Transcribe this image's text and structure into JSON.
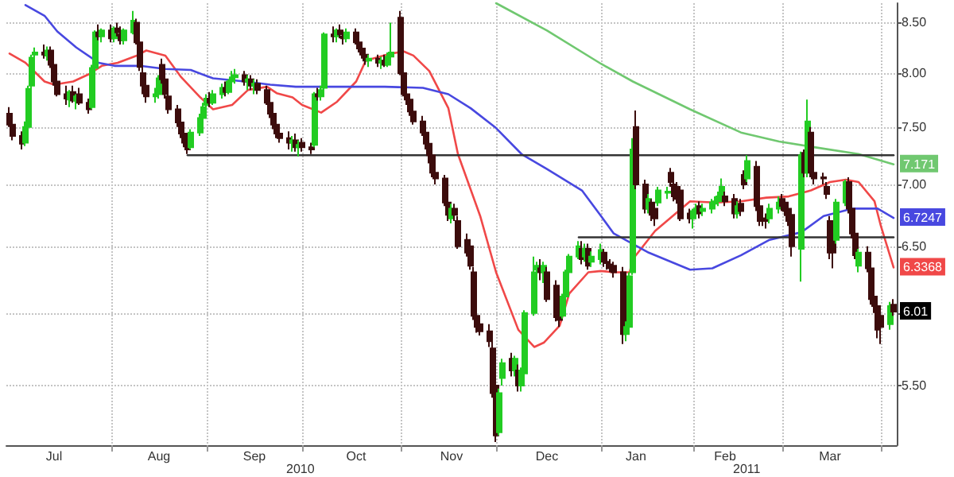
{
  "chart_data": {
    "type": "candlestick",
    "x": [
      "2010-07-01",
      "2010-07-02",
      "2010-07-05",
      "2010-07-06",
      "2010-07-07",
      "2010-07-08",
      "2010-07-09",
      "2010-07-12",
      "2010-07-13",
      "2010-07-14",
      "2010-07-15",
      "2010-07-16",
      "2010-07-19",
      "2010-07-20",
      "2010-07-21",
      "2010-07-22",
      "2010-07-23",
      "2010-07-26",
      "2010-07-27",
      "2010-07-28",
      "2010-07-29",
      "2010-07-30",
      "2010-08-02",
      "2010-08-03",
      "2010-08-04",
      "2010-08-05",
      "2010-08-06",
      "2010-08-09",
      "2010-08-10",
      "2010-08-11",
      "2010-08-12",
      "2010-08-13",
      "2010-08-16",
      "2010-08-17",
      "2010-08-18",
      "2010-08-19",
      "2010-08-20",
      "2010-08-23",
      "2010-08-24",
      "2010-08-25",
      "2010-08-26",
      "2010-08-27",
      "2010-08-30",
      "2010-08-31",
      "2010-09-01",
      "2010-09-02",
      "2010-09-03",
      "2010-09-06",
      "2010-09-07",
      "2010-09-08",
      "2010-09-09",
      "2010-09-10",
      "2010-09-13",
      "2010-09-14",
      "2010-09-15",
      "2010-09-16",
      "2010-09-17",
      "2010-09-20",
      "2010-09-21",
      "2010-09-22",
      "2010-09-23",
      "2010-09-24",
      "2010-09-27",
      "2010-09-28",
      "2010-09-29",
      "2010-09-30",
      "2010-10-01",
      "2010-10-04",
      "2010-10-05",
      "2010-10-06",
      "2010-10-07",
      "2010-10-08",
      "2010-10-11",
      "2010-10-12",
      "2010-10-13",
      "2010-10-14",
      "2010-10-15",
      "2010-10-18",
      "2010-10-19",
      "2010-10-20",
      "2010-10-21",
      "2010-10-22",
      "2010-10-25",
      "2010-10-26",
      "2010-10-27",
      "2010-10-28",
      "2010-10-29",
      "2010-11-01",
      "2010-11-02",
      "2010-11-03",
      "2010-11-04",
      "2010-11-05",
      "2010-11-08",
      "2010-11-09",
      "2010-11-10",
      "2010-11-11",
      "2010-11-12",
      "2010-11-15",
      "2010-11-16",
      "2010-11-17",
      "2010-11-18",
      "2010-11-19",
      "2010-11-22",
      "2010-11-23",
      "2010-11-24",
      "2010-11-25",
      "2010-11-26",
      "2010-11-29",
      "2010-11-30",
      "2010-12-01",
      "2010-12-02",
      "2010-12-03",
      "2010-12-06",
      "2010-12-07",
      "2010-12-08",
      "2010-12-09",
      "2010-12-10",
      "2010-12-13",
      "2010-12-14",
      "2010-12-15",
      "2010-12-16",
      "2010-12-17",
      "2010-12-20",
      "2010-12-21",
      "2010-12-22",
      "2010-12-23",
      "2010-12-24",
      "2010-12-27",
      "2010-12-28",
      "2010-12-29",
      "2010-12-30",
      "2010-12-31",
      "2011-01-03",
      "2011-01-04",
      "2011-01-05",
      "2011-01-06",
      "2011-01-07",
      "2011-01-10",
      "2011-01-11",
      "2011-01-12",
      "2011-01-13",
      "2011-01-14",
      "2011-01-17",
      "2011-01-18",
      "2011-01-19",
      "2011-01-20",
      "2011-01-21",
      "2011-01-24",
      "2011-01-25",
      "2011-01-26",
      "2011-01-27",
      "2011-01-28",
      "2011-01-31",
      "2011-02-01",
      "2011-02-02",
      "2011-02-03",
      "2011-02-04",
      "2011-02-07",
      "2011-02-08",
      "2011-02-09",
      "2011-02-10",
      "2011-02-11",
      "2011-02-14",
      "2011-02-15",
      "2011-02-16",
      "2011-02-17",
      "2011-02-18",
      "2011-02-21",
      "2011-02-22",
      "2011-02-23",
      "2011-02-24",
      "2011-02-25",
      "2011-02-28",
      "2011-03-01",
      "2011-03-02",
      "2011-03-03",
      "2011-03-04",
      "2011-03-07",
      "2011-03-08",
      "2011-03-09",
      "2011-03-10",
      "2011-03-11",
      "2011-03-14",
      "2011-03-15",
      "2011-03-16",
      "2011-03-17",
      "2011-03-18",
      "2011-03-21",
      "2011-03-22",
      "2011-03-23",
      "2011-03-24",
      "2011-03-25",
      "2011-03-28",
      "2011-03-29",
      "2011-03-30",
      "2011-03-31",
      "2011-04-01",
      "2011-04-04",
      "2011-04-05"
    ],
    "ohlc": [
      [
        7.62,
        7.68,
        7.5,
        7.52
      ],
      [
        7.52,
        7.58,
        7.38,
        7.42
      ],
      [
        7.42,
        7.46,
        7.3,
        7.35
      ],
      [
        7.36,
        7.55,
        7.33,
        7.5
      ],
      [
        7.5,
        7.88,
        7.48,
        7.85
      ],
      [
        7.88,
        8.18,
        7.85,
        8.15
      ],
      [
        8.18,
        8.25,
        8.12,
        8.2
      ],
      [
        8.2,
        8.28,
        8.14,
        8.18
      ],
      [
        8.17,
        8.26,
        8.12,
        8.22
      ],
      [
        8.22,
        8.26,
        8.05,
        8.08
      ],
      [
        8.08,
        8.12,
        7.88,
        7.92
      ],
      [
        7.92,
        7.96,
        7.78,
        7.8
      ],
      [
        7.8,
        7.88,
        7.7,
        7.76
      ],
      [
        7.75,
        7.84,
        7.68,
        7.82
      ],
      [
        7.82,
        7.88,
        7.72,
        7.74
      ],
      [
        7.74,
        7.8,
        7.66,
        7.78
      ],
      [
        7.8,
        7.86,
        7.7,
        7.72
      ],
      [
        7.72,
        7.76,
        7.62,
        7.66
      ],
      [
        7.68,
        8.08,
        7.66,
        8.05
      ],
      [
        8.05,
        8.42,
        8.02,
        8.4
      ],
      [
        8.4,
        8.48,
        8.32,
        8.36
      ],
      [
        8.36,
        8.44,
        8.3,
        8.42
      ],
      [
        8.42,
        8.48,
        8.3,
        8.34
      ],
      [
        8.34,
        8.46,
        8.3,
        8.44
      ],
      [
        8.44,
        8.5,
        8.36,
        8.4
      ],
      [
        8.38,
        8.46,
        8.28,
        8.32
      ],
      [
        8.32,
        8.44,
        8.28,
        8.42
      ],
      [
        8.4,
        8.62,
        8.38,
        8.52
      ],
      [
        8.5,
        8.54,
        8.28,
        8.3
      ],
      [
        8.3,
        8.34,
        8.02,
        8.06
      ],
      [
        8.0,
        8.06,
        7.8,
        7.88
      ],
      [
        7.88,
        7.96,
        7.72,
        7.78
      ],
      [
        7.78,
        7.86,
        7.72,
        7.8
      ],
      [
        7.8,
        7.98,
        7.76,
        7.95
      ],
      [
        8.08,
        8.14,
        7.9,
        7.94
      ],
      [
        7.94,
        7.98,
        7.76,
        7.8
      ],
      [
        7.78,
        7.82,
        7.62,
        7.66
      ],
      [
        7.66,
        7.7,
        7.5,
        7.54
      ],
      [
        7.54,
        7.58,
        7.4,
        7.44
      ],
      [
        7.44,
        7.48,
        7.32,
        7.36
      ],
      [
        7.36,
        7.42,
        7.26,
        7.3
      ],
      [
        7.32,
        7.48,
        7.3,
        7.45
      ],
      [
        7.45,
        7.62,
        7.42,
        7.58
      ],
      [
        7.58,
        7.72,
        7.55,
        7.68
      ],
      [
        7.7,
        7.8,
        7.64,
        7.76
      ],
      [
        7.76,
        7.82,
        7.68,
        7.72
      ],
      [
        7.72,
        7.84,
        7.7,
        7.8
      ],
      [
        7.8,
        7.9,
        7.76,
        7.86
      ],
      [
        7.86,
        7.92,
        7.78,
        7.82
      ],
      [
        7.82,
        7.94,
        7.8,
        7.92
      ],
      [
        7.92,
        8.02,
        7.86,
        7.96
      ],
      [
        7.96,
        8.04,
        7.9,
        7.98
      ],
      [
        7.98,
        8.02,
        7.88,
        7.92
      ],
      [
        7.92,
        7.98,
        7.84,
        7.94
      ],
      [
        7.94,
        7.98,
        7.84,
        7.88
      ],
      [
        7.88,
        7.94,
        7.8,
        7.9
      ],
      [
        7.9,
        7.94,
        7.8,
        7.84
      ],
      [
        7.84,
        7.88,
        7.7,
        7.72
      ],
      [
        7.72,
        7.76,
        7.58,
        7.62
      ],
      [
        7.62,
        7.66,
        7.48,
        7.52
      ],
      [
        7.52,
        7.56,
        7.4,
        7.44
      ],
      [
        7.44,
        7.5,
        7.36,
        7.4
      ],
      [
        7.4,
        7.46,
        7.3,
        7.36
      ],
      [
        7.36,
        7.42,
        7.28,
        7.38
      ],
      [
        7.38,
        7.44,
        7.28,
        7.32
      ],
      [
        7.32,
        7.38,
        7.24,
        7.34
      ],
      [
        7.36,
        7.4,
        7.28,
        7.32
      ],
      [
        7.32,
        7.36,
        7.26,
        7.3
      ],
      [
        7.34,
        7.82,
        7.32,
        7.8
      ],
      [
        7.8,
        7.86,
        7.74,
        7.78
      ],
      [
        7.78,
        7.88,
        7.74,
        7.84
      ],
      [
        7.86,
        8.4,
        7.84,
        8.38
      ],
      [
        8.38,
        8.46,
        8.3,
        8.36
      ],
      [
        8.36,
        8.44,
        8.3,
        8.42
      ],
      [
        8.42,
        8.48,
        8.34,
        8.38
      ],
      [
        8.36,
        8.42,
        8.28,
        8.34
      ],
      [
        8.34,
        8.44,
        8.3,
        8.4
      ],
      [
        8.4,
        8.44,
        8.28,
        8.3
      ],
      [
        8.3,
        8.34,
        8.2,
        8.24
      ],
      [
        8.24,
        8.28,
        8.14,
        8.18
      ],
      [
        8.18,
        8.22,
        8.08,
        8.12
      ],
      [
        8.12,
        8.18,
        8.06,
        8.14
      ],
      [
        8.14,
        8.18,
        8.06,
        8.1
      ],
      [
        8.1,
        8.16,
        8.04,
        8.12
      ],
      [
        8.12,
        8.18,
        8.06,
        8.08
      ],
      [
        8.08,
        8.2,
        8.06,
        8.16
      ],
      [
        8.16,
        8.5,
        8.12,
        8.2
      ],
      [
        8.55,
        8.62,
        7.98,
        8.0
      ],
      [
        8.0,
        8.04,
        7.78,
        7.8
      ],
      [
        7.8,
        7.86,
        7.7,
        7.75
      ],
      [
        7.75,
        7.8,
        7.6,
        7.64
      ],
      [
        7.64,
        7.68,
        7.52,
        7.55
      ],
      [
        7.55,
        7.6,
        7.42,
        7.45
      ],
      [
        7.45,
        7.5,
        7.3,
        7.35
      ],
      [
        7.35,
        7.4,
        7.18,
        7.25
      ],
      [
        7.25,
        7.3,
        7.06,
        7.1
      ],
      [
        7.1,
        7.16,
        7.0,
        7.05
      ],
      [
        7.05,
        7.08,
        6.82,
        6.85
      ],
      [
        6.85,
        6.9,
        6.7,
        6.75
      ],
      [
        6.72,
        6.84,
        6.68,
        6.8
      ],
      [
        6.8,
        6.84,
        6.7,
        6.75
      ],
      [
        6.7,
        6.74,
        6.48,
        6.5
      ],
      [
        6.55,
        6.6,
        6.42,
        6.45
      ],
      [
        6.5,
        6.54,
        6.32,
        6.35
      ],
      [
        6.3,
        6.34,
        5.95,
        5.98
      ],
      [
        5.98,
        6.04,
        5.86,
        5.9
      ],
      [
        5.92,
        5.98,
        5.84,
        5.87
      ],
      [
        5.87,
        5.92,
        5.76,
        5.8
      ],
      [
        5.75,
        5.8,
        5.42,
        5.45
      ],
      [
        5.5,
        5.56,
        5.14,
        5.18
      ],
      [
        5.2,
        5.48,
        5.18,
        5.45
      ],
      [
        5.55,
        5.68,
        5.5,
        5.65
      ],
      [
        5.68,
        5.72,
        5.56,
        5.6
      ],
      [
        5.6,
        5.7,
        5.56,
        5.68
      ],
      [
        5.6,
        5.64,
        5.46,
        5.5
      ],
      [
        5.5,
        5.62,
        5.46,
        5.6
      ],
      [
        5.58,
        6.02,
        5.56,
        6.0
      ],
      [
        6.0,
        6.42,
        5.98,
        6.3
      ],
      [
        6.32,
        6.38,
        6.22,
        6.35
      ],
      [
        6.33,
        6.4,
        6.24,
        6.3
      ],
      [
        6.3,
        6.38,
        6.22,
        6.35
      ],
      [
        6.3,
        6.34,
        6.08,
        6.1
      ],
      [
        6.2,
        6.24,
        5.94,
        5.97
      ],
      [
        5.99,
        6.04,
        5.9,
        5.95
      ],
      [
        5.98,
        6.14,
        5.96,
        6.12
      ],
      [
        6.12,
        6.32,
        6.1,
        6.3
      ],
      [
        6.3,
        6.44,
        6.28,
        6.42
      ],
      [
        6.42,
        6.54,
        6.4,
        6.5
      ],
      [
        6.48,
        6.54,
        6.36,
        6.4
      ],
      [
        6.42,
        6.52,
        6.38,
        6.48
      ],
      [
        6.48,
        6.52,
        6.32,
        6.35
      ],
      [
        6.38,
        6.46,
        6.34,
        6.42
      ],
      [
        6.4,
        6.52,
        6.36,
        6.47
      ],
      [
        6.45,
        6.48,
        6.34,
        6.38
      ],
      [
        6.38,
        6.42,
        6.32,
        6.37
      ],
      [
        6.36,
        6.4,
        6.3,
        6.33
      ],
      [
        6.35,
        6.38,
        6.26,
        6.3
      ],
      [
        6.3,
        6.34,
        5.78,
        5.85
      ],
      [
        5.85,
        5.94,
        5.8,
        5.9
      ],
      [
        5.9,
        6.3,
        5.88,
        6.27
      ],
      [
        6.3,
        7.4,
        6.28,
        7.3
      ],
      [
        7.5,
        7.65,
        6.96,
        7.0
      ],
      [
        7.0,
        7.04,
        6.76,
        6.8
      ],
      [
        6.8,
        6.92,
        6.76,
        6.88
      ],
      [
        6.85,
        6.88,
        6.7,
        6.75
      ],
      [
        6.8,
        6.84,
        6.66,
        6.72
      ],
      [
        6.85,
        6.98,
        6.82,
        6.95
      ],
      [
        6.93,
        6.98,
        6.88,
        6.94
      ],
      [
        7.1,
        7.14,
        6.98,
        7.02
      ],
      [
        7.0,
        7.04,
        6.86,
        6.9
      ],
      [
        6.98,
        7.02,
        6.84,
        6.88
      ],
      [
        6.95,
        6.98,
        6.7,
        6.72
      ],
      [
        6.76,
        6.8,
        6.68,
        6.72
      ],
      [
        6.72,
        6.8,
        6.64,
        6.78
      ],
      [
        6.76,
        6.84,
        6.72,
        6.8
      ],
      [
        6.82,
        6.86,
        6.72,
        6.76
      ],
      [
        6.78,
        6.84,
        6.74,
        6.8
      ],
      [
        6.8,
        6.88,
        6.76,
        6.85
      ],
      [
        6.84,
        6.9,
        6.8,
        6.86
      ],
      [
        6.86,
        6.94,
        6.82,
        6.9
      ],
      [
        6.9,
        7.05,
        6.88,
        6.98
      ],
      [
        6.9,
        6.94,
        6.82,
        6.86
      ],
      [
        6.88,
        6.92,
        6.72,
        6.76
      ],
      [
        6.76,
        6.86,
        6.72,
        6.82
      ],
      [
        6.84,
        6.88,
        6.74,
        6.78
      ],
      [
        7.08,
        7.12,
        6.96,
        7.0
      ],
      [
        7.05,
        7.25,
        7.02,
        7.2
      ],
      [
        7.15,
        7.2,
        6.78,
        6.82
      ],
      [
        6.82,
        6.86,
        6.66,
        6.7
      ],
      [
        6.72,
        6.78,
        6.66,
        6.7
      ],
      [
        6.72,
        6.76,
        6.64,
        6.7
      ],
      [
        6.72,
        6.84,
        6.68,
        6.8
      ],
      [
        6.8,
        6.9,
        6.76,
        6.85
      ],
      [
        6.88,
        6.92,
        6.78,
        6.82
      ],
      [
        6.85,
        6.88,
        6.74,
        6.78
      ],
      [
        6.8,
        6.84,
        6.66,
        6.7
      ],
      [
        6.75,
        6.78,
        6.42,
        6.5
      ],
      [
        6.48,
        7.28,
        6.23,
        7.25
      ],
      [
        7.27,
        7.3,
        7.06,
        7.1
      ],
      [
        7.1,
        7.75,
        7.06,
        7.55
      ],
      [
        7.45,
        7.5,
        7.06,
        7.1
      ],
      [
        7.1,
        7.14,
        7.0,
        7.05
      ],
      [
        7.06,
        7.1,
        7.0,
        7.05
      ],
      [
        6.98,
        7.02,
        6.88,
        6.92
      ],
      [
        6.7,
        6.74,
        6.4,
        6.45
      ],
      [
        6.55,
        6.6,
        6.33,
        6.45
      ],
      [
        6.55,
        6.88,
        6.52,
        6.85
      ],
      [
        6.85,
        7.04,
        6.82,
        7.02
      ],
      [
        7.02,
        7.06,
        6.76,
        6.8
      ],
      [
        6.8,
        6.84,
        6.56,
        6.6
      ],
      [
        6.6,
        6.64,
        6.4,
        6.43
      ],
      [
        6.35,
        6.48,
        6.3,
        6.45
      ],
      [
        6.45,
        6.5,
        6.3,
        6.33
      ],
      [
        6.33,
        6.36,
        6.06,
        6.1
      ],
      [
        6.12,
        6.16,
        6.0,
        6.05
      ],
      [
        6.05,
        6.08,
        5.82,
        5.88
      ],
      [
        5.98,
        6.02,
        5.78,
        5.9
      ],
      [
        5.92,
        6.08,
        5.88,
        6.05
      ],
      [
        6.06,
        6.1,
        5.98,
        6.01
      ]
    ],
    "colors": [
      "#3c0c0c",
      "#3c0c0c",
      "#3c0c0c",
      "#22cc22",
      "#22cc22",
      "#22cc22",
      "#22cc22",
      "#3c0c0c",
      "#22cc22",
      "#3c0c0c",
      "#3c0c0c",
      "#3c0c0c",
      "#3c0c0c",
      "#22cc22",
      "#3c0c0c",
      "#22cc22",
      "#3c0c0c",
      "#3c0c0c",
      "#22cc22",
      "#22cc22",
      "#3c0c0c",
      "#22cc22",
      "#3c0c0c",
      "#22cc22",
      "#3c0c0c",
      "#3c0c0c",
      "#22cc22",
      "#22cc22",
      "#3c0c0c",
      "#3c0c0c",
      "#3c0c0c",
      "#3c0c0c",
      "#22cc22",
      "#22cc22",
      "#3c0c0c",
      "#3c0c0c",
      "#3c0c0c",
      "#3c0c0c",
      "#3c0c0c",
      "#3c0c0c",
      "#3c0c0c",
      "#22cc22",
      "#22cc22",
      "#22cc22",
      "#22cc22",
      "#3c0c0c",
      "#22cc22",
      "#22cc22",
      "#3c0c0c",
      "#22cc22",
      "#22cc22",
      "#22cc22",
      "#3c0c0c",
      "#22cc22",
      "#3c0c0c",
      "#22cc22",
      "#3c0c0c",
      "#3c0c0c",
      "#3c0c0c",
      "#3c0c0c",
      "#3c0c0c",
      "#3c0c0c",
      "#3c0c0c",
      "#22cc22",
      "#3c0c0c",
      "#22cc22",
      "#3c0c0c",
      "#3c0c0c",
      "#22cc22",
      "#3c0c0c",
      "#22cc22",
      "#22cc22",
      "#3c0c0c",
      "#22cc22",
      "#3c0c0c",
      "#3c0c0c",
      "#22cc22",
      "#3c0c0c",
      "#3c0c0c",
      "#3c0c0c",
      "#3c0c0c",
      "#22cc22",
      "#3c0c0c",
      "#22cc22",
      "#3c0c0c",
      "#22cc22",
      "#22cc22",
      "#3c0c0c",
      "#3c0c0c",
      "#3c0c0c",
      "#3c0c0c",
      "#3c0c0c",
      "#3c0c0c",
      "#3c0c0c",
      "#3c0c0c",
      "#3c0c0c",
      "#3c0c0c",
      "#3c0c0c",
      "#3c0c0c",
      "#22cc22",
      "#3c0c0c",
      "#3c0c0c",
      "#3c0c0c",
      "#3c0c0c",
      "#3c0c0c",
      "#3c0c0c",
      "#3c0c0c",
      "#3c0c0c",
      "#3c0c0c",
      "#3c0c0c",
      "#22cc22",
      "#22cc22",
      "#3c0c0c",
      "#22cc22",
      "#3c0c0c",
      "#22cc22",
      "#22cc22",
      "#22cc22",
      "#22cc22",
      "#3c0c0c",
      "#22cc22",
      "#3c0c0c",
      "#3c0c0c",
      "#3c0c0c",
      "#22cc22",
      "#22cc22",
      "#22cc22",
      "#22cc22",
      "#3c0c0c",
      "#22cc22",
      "#3c0c0c",
      "#22cc22",
      "#22cc22",
      "#3c0c0c",
      "#3c0c0c",
      "#3c0c0c",
      "#3c0c0c",
      "#3c0c0c",
      "#22cc22",
      "#22cc22",
      "#22cc22",
      "#3c0c0c",
      "#3c0c0c",
      "#22cc22",
      "#3c0c0c",
      "#3c0c0c",
      "#22cc22",
      "#22cc22",
      "#3c0c0c",
      "#3c0c0c",
      "#3c0c0c",
      "#3c0c0c",
      "#3c0c0c",
      "#22cc22",
      "#22cc22",
      "#3c0c0c",
      "#22cc22",
      "#22cc22",
      "#22cc22",
      "#22cc22",
      "#22cc22",
      "#3c0c0c",
      "#3c0c0c",
      "#22cc22",
      "#3c0c0c",
      "#3c0c0c",
      "#22cc22",
      "#3c0c0c",
      "#3c0c0c",
      "#3c0c0c",
      "#3c0c0c",
      "#22cc22",
      "#22cc22",
      "#3c0c0c",
      "#3c0c0c",
      "#3c0c0c",
      "#3c0c0c",
      "#22cc22",
      "#3c0c0c",
      "#22cc22",
      "#3c0c0c",
      "#3c0c0c",
      "#3c0c0c",
      "#3c0c0c",
      "#3c0c0c",
      "#3c0c0c",
      "#22cc22",
      "#22cc22",
      "#3c0c0c",
      "#3c0c0c",
      "#3c0c0c",
      "#22cc22",
      "#3c0c0c",
      "#3c0c0c",
      "#3c0c0c",
      "#3c0c0c",
      "#3c0c0c",
      "#22cc22",
      "#3c0c0c"
    ],
    "series": [
      {
        "type": "line",
        "color": "#f04848",
        "x": [
          "2010-07-01",
          "2010-07-06",
          "2010-07-12",
          "2010-07-15",
          "2010-07-21",
          "2010-07-26",
          "2010-07-30",
          "2010-08-04",
          "2010-08-10",
          "2010-08-13",
          "2010-08-19",
          "2010-08-24",
          "2010-08-30",
          "2010-09-03",
          "2010-09-09",
          "2010-09-14",
          "2010-09-20",
          "2010-09-23",
          "2010-09-28",
          "2010-10-01",
          "2010-10-07",
          "2010-10-12",
          "2010-10-18",
          "2010-10-21",
          "2010-10-29",
          "2010-11-02",
          "2010-11-05",
          "2010-11-10",
          "2010-11-16",
          "2010-11-19",
          "2010-11-26",
          "2010-12-01",
          "2010-12-08",
          "2010-12-13",
          "2010-12-16",
          "2010-12-21",
          "2010-12-24",
          "2010-12-30",
          "2011-01-03",
          "2011-01-07",
          "2011-01-12",
          "2011-01-13",
          "2011-01-20",
          "2011-01-31",
          "2011-02-08",
          "2011-02-16",
          "2011-02-24",
          "2011-03-03",
          "2011-03-10",
          "2011-03-16",
          "2011-03-21",
          "2011-03-25",
          "2011-03-30",
          "2011-04-01",
          "2011-04-05"
        ],
        "values": [
          8.19,
          8.1,
          7.92,
          7.89,
          7.92,
          7.99,
          8.07,
          8.1,
          8.17,
          8.22,
          8.17,
          7.96,
          7.77,
          7.66,
          7.7,
          7.84,
          7.87,
          7.81,
          7.77,
          7.7,
          7.63,
          7.73,
          7.92,
          8.12,
          8.19,
          8.21,
          8.17,
          8.02,
          7.67,
          7.26,
          6.74,
          6.3,
          5.88,
          5.76,
          5.79,
          5.91,
          6.14,
          6.3,
          6.31,
          6.3,
          6.3,
          6.4,
          6.62,
          6.86,
          6.85,
          6.86,
          6.89,
          6.9,
          6.95,
          7.02,
          7.04,
          7.02,
          6.86,
          6.66,
          6.3368
        ],
        "value_labels": [
          null,
          null,
          null,
          null,
          null,
          null,
          null,
          null,
          null,
          null,
          null,
          null,
          null,
          null,
          null,
          null,
          null,
          null,
          null,
          null,
          null,
          null,
          null,
          null,
          null,
          null,
          null,
          null,
          null,
          null,
          null,
          null,
          null,
          null,
          null,
          null,
          null,
          null,
          null,
          null,
          null,
          null,
          null,
          null,
          null,
          null,
          null,
          null,
          null,
          null,
          null,
          null,
          null,
          null,
          "6.3368"
        ]
      },
      {
        "type": "line",
        "color": "#4848e0",
        "x": [
          "2010-07-06",
          "2010-07-12",
          "2010-07-16",
          "2010-07-22",
          "2010-07-29",
          "2010-08-03",
          "2010-08-11",
          "2010-08-19",
          "2010-08-27",
          "2010-09-03",
          "2010-09-13",
          "2010-09-21",
          "2010-09-29",
          "2010-10-07",
          "2010-10-19",
          "2010-10-27",
          "2010-11-08",
          "2010-11-16",
          "2010-11-23",
          "2010-12-01",
          "2010-12-09",
          "2010-12-17",
          "2010-12-28",
          "2011-01-03",
          "2011-01-07",
          "2011-01-18",
          "2011-01-31",
          "2011-02-07",
          "2011-02-16",
          "2011-02-25",
          "2011-03-07",
          "2011-03-14",
          "2011-03-23",
          "2011-03-31",
          "2011-04-05"
        ],
        "values": [
          8.68,
          8.57,
          8.41,
          8.25,
          8.1,
          8.07,
          8.07,
          8.04,
          8.03,
          7.95,
          7.92,
          7.89,
          7.87,
          7.87,
          7.87,
          7.87,
          7.86,
          7.8,
          7.67,
          7.49,
          7.26,
          7.13,
          6.95,
          6.74,
          6.6,
          6.45,
          6.32,
          6.33,
          6.43,
          6.55,
          6.61,
          6.74,
          6.8,
          6.8,
          6.7247
        ],
        "value_labels": [
          null,
          null,
          null,
          null,
          null,
          null,
          null,
          null,
          null,
          null,
          null,
          null,
          null,
          null,
          null,
          null,
          null,
          null,
          null,
          null,
          null,
          null,
          null,
          null,
          null,
          null,
          null,
          null,
          null,
          null,
          null,
          null,
          null,
          null,
          "6.7247"
        ]
      },
      {
        "type": "line",
        "color": "#70c870",
        "x": [
          "2010-12-01",
          "2010-12-17",
          "2011-01-03",
          "2011-01-13",
          "2011-01-31",
          "2011-02-16",
          "2011-02-28",
          "2011-03-11",
          "2011-03-25",
          "2011-04-05"
        ],
        "values": [
          8.7,
          8.42,
          8.09,
          7.92,
          7.66,
          7.45,
          7.37,
          7.32,
          7.26,
          7.171
        ],
        "value_labels": [
          null,
          null,
          null,
          null,
          null,
          null,
          null,
          null,
          null,
          "7.171"
        ]
      },
      {
        "type": "line",
        "color": "#333333",
        "x": [
          "2010-08-26",
          "2011-04-05"
        ],
        "values": [
          7.25,
          7.25
        ]
      },
      {
        "type": "line",
        "color": "#333333",
        "x": [
          "2010-12-27",
          "2011-04-05"
        ],
        "values": [
          6.57,
          6.57
        ]
      }
    ],
    "xticks": [
      {
        "value": "2010-07-15",
        "label": "Jul"
      },
      {
        "value": "2010-08-02",
        "label": null
      },
      {
        "value": "2010-08-17",
        "label": "Aug"
      },
      {
        "value": "2010-09-01",
        "label": null
      },
      {
        "value": "2010-09-16",
        "label": "Sep"
      },
      {
        "value": "2010-10-01",
        "label": null
      },
      {
        "value": "2010-10-18",
        "label": "Oct"
      },
      {
        "value": "2010-11-01",
        "label": null
      },
      {
        "value": "2010-11-17",
        "label": "Nov"
      },
      {
        "value": "2010-12-01",
        "label": null
      },
      {
        "value": "2010-12-17",
        "label": "Dec"
      },
      {
        "value": "2011-01-03",
        "label": null
      },
      {
        "value": "2011-01-14",
        "label": "Jan"
      },
      {
        "value": "2011-02-01",
        "label": null
      },
      {
        "value": "2011-02-11",
        "label": "Feb"
      },
      {
        "value": "2011-03-01",
        "label": null
      },
      {
        "value": "2011-03-16",
        "label": "Mar"
      },
      {
        "value": "2011-04-01",
        "label": null
      }
    ],
    "xlim": [
      "2010-06-30",
      "2011-04-06"
    ],
    "ylim": [
      5.12,
      8.7
    ],
    "yticks": [
      {
        "value": 5.5,
        "label": "5.50"
      },
      {
        "value": 6,
        "label": null
      },
      {
        "value": 6.5,
        "label": "6.50"
      },
      {
        "value": 7,
        "label": "7.00"
      },
      {
        "value": 7.5,
        "label": "7.50"
      },
      {
        "value": 8,
        "label": "8.00"
      },
      {
        "value": 8.5,
        "label": "8.50"
      }
    ],
    "log": true,
    "grid": true,
    "line_style": "solid",
    "annotations": [
      {
        "text": "6.01",
        "x": "2011-04-05",
        "y": 6.01
      },
      "2010",
      "2011"
    ]
  }
}
